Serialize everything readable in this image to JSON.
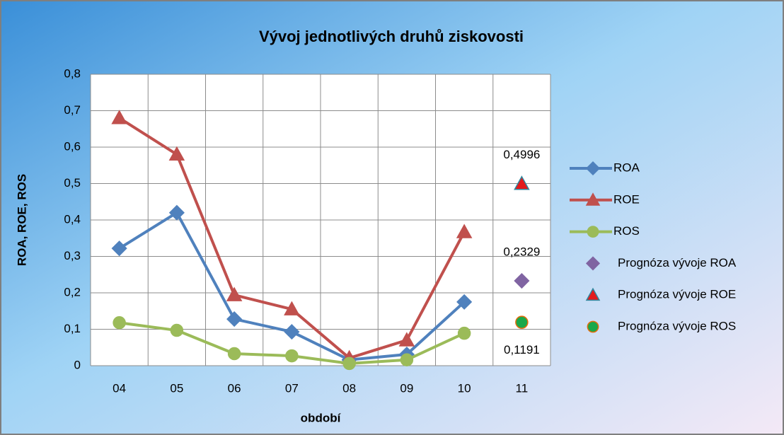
{
  "chart_data": {
    "type": "line",
    "title": "Vývoj jednotlivých druhů ziskovosti",
    "x_label": "období",
    "y_label": "ROA, ROE, ROS",
    "categories": [
      "04",
      "05",
      "06",
      "07",
      "08",
      "09",
      "10",
      "11"
    ],
    "ylim": [
      0,
      0.8
    ],
    "yticks": [
      0,
      {
        "value": 0.1,
        "label": "0,1"
      },
      {
        "value": 0.2,
        "label": "0,2"
      },
      {
        "value": 0.3,
        "label": "0,3"
      },
      {
        "value": 0.4,
        "label": "0,4"
      },
      {
        "value": 0.5,
        "label": "0,5"
      },
      {
        "value": 0.6,
        "label": "0,6"
      },
      {
        "value": 0.7,
        "label": "0,7"
      },
      {
        "value": 0.8,
        "label": "0,8"
      }
    ],
    "grid": true,
    "legend": "right",
    "series": [
      {
        "name": "ROA",
        "color": "#4f81bd",
        "marker": "diamond",
        "line": true,
        "values": [
          0.322,
          0.42,
          0.128,
          0.093,
          0.016,
          0.031,
          0.175,
          null
        ]
      },
      {
        "name": "ROE",
        "color": "#c0504d",
        "marker": "triangle",
        "line": true,
        "values": [
          0.68,
          0.58,
          0.194,
          0.155,
          0.021,
          0.07,
          0.367,
          null
        ]
      },
      {
        "name": "ROS",
        "color": "#9bbb59",
        "marker": "circle",
        "line": true,
        "values": [
          0.118,
          0.097,
          0.033,
          0.027,
          0.006,
          0.016,
          0.089,
          null
        ]
      },
      {
        "name": "Prognóza vývoje ROA",
        "color": "#8064a2",
        "marker": "diamond",
        "line": false,
        "values": [
          null,
          null,
          null,
          null,
          null,
          null,
          null,
          0.2329
        ],
        "value_labels": [
          null,
          null,
          null,
          null,
          null,
          null,
          null,
          "0,2329"
        ],
        "label_position": "above"
      },
      {
        "name": "Prognóza vývoje ROE",
        "color": "#e31a1c",
        "edge_color": "#31859c",
        "marker": "triangle",
        "line": false,
        "values": [
          null,
          null,
          null,
          null,
          null,
          null,
          null,
          0.4996
        ],
        "value_labels": [
          null,
          null,
          null,
          null,
          null,
          null,
          null,
          "0,4996"
        ],
        "label_position": "above"
      },
      {
        "name": "Prognóza vývoje ROS",
        "color": "#1aa84a",
        "edge_color": "#e46c0a",
        "marker": "circle",
        "line": false,
        "values": [
          null,
          null,
          null,
          null,
          null,
          null,
          null,
          0.1191
        ],
        "value_labels": [
          null,
          null,
          null,
          null,
          null,
          null,
          null,
          "0,1191"
        ],
        "label_position": "below"
      }
    ]
  }
}
